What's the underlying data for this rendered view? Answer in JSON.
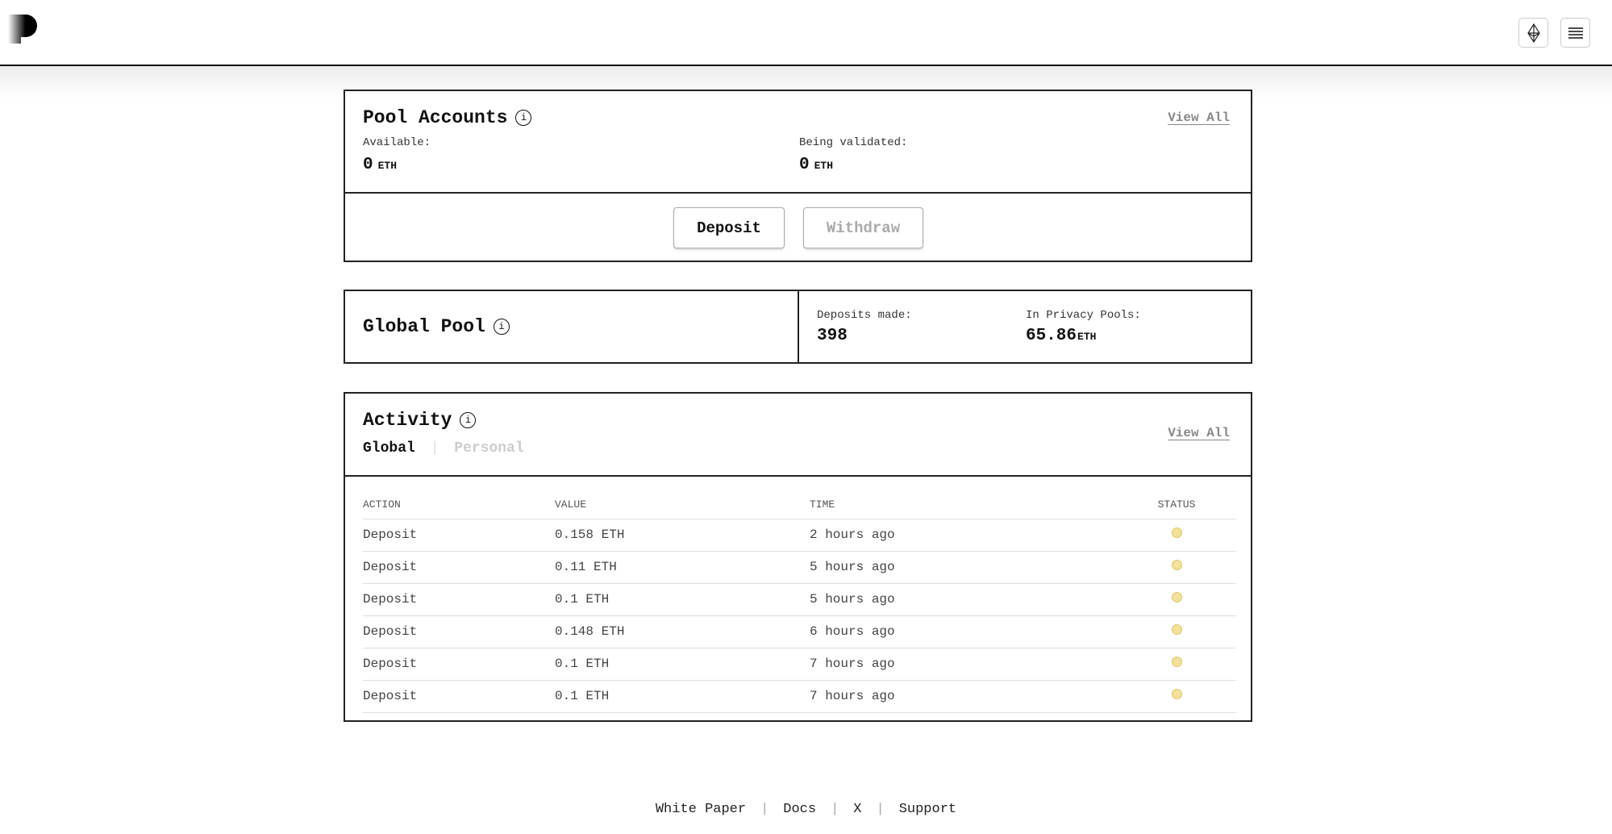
{
  "header": {
    "logo": "P",
    "icons": [
      "ethereum-icon",
      "menu-icon"
    ]
  },
  "pool_accounts": {
    "title": "Pool Accounts",
    "view_all": "View All",
    "available_label": "Available:",
    "available_value": "0",
    "available_unit": "ETH",
    "validating_label": "Being validated:",
    "validating_value": "0",
    "validating_unit": "ETH",
    "deposit_label": "Deposit",
    "withdraw_label": "Withdraw"
  },
  "global_pool": {
    "title": "Global Pool",
    "deposits_label": "Deposits made:",
    "deposits_value": "398",
    "privacy_label": "In Privacy Pools:",
    "privacy_value": "65.86",
    "privacy_unit": "ETH"
  },
  "activity": {
    "title": "Activity",
    "view_all": "View All",
    "tabs": [
      "Global",
      "Personal"
    ],
    "active_tab": "Global",
    "columns": [
      "ACTION",
      "VALUE",
      "TIME",
      "STATUS"
    ],
    "rows": [
      {
        "action": "Deposit",
        "value": "0.158 ETH",
        "time": "2 hours ago",
        "status": "pending"
      },
      {
        "action": "Deposit",
        "value": "0.11 ETH",
        "time": "5 hours ago",
        "status": "pending"
      },
      {
        "action": "Deposit",
        "value": "0.1 ETH",
        "time": "5 hours ago",
        "status": "pending"
      },
      {
        "action": "Deposit",
        "value": "0.148 ETH",
        "time": "6 hours ago",
        "status": "pending"
      },
      {
        "action": "Deposit",
        "value": "0.1 ETH",
        "time": "7 hours ago",
        "status": "pending"
      },
      {
        "action": "Deposit",
        "value": "0.1 ETH",
        "time": "7 hours ago",
        "status": "pending"
      }
    ],
    "status_color": "#f3e19a"
  },
  "footer": {
    "links": [
      "White Paper",
      "Docs",
      "X",
      "Support"
    ]
  }
}
